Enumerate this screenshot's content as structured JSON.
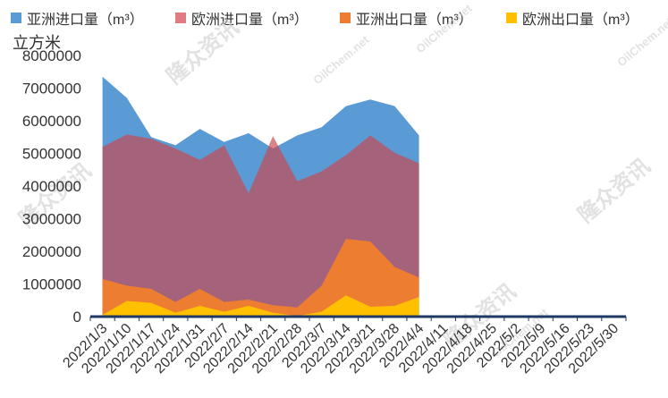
{
  "chart_data": {
    "type": "area",
    "ylabel": "立方米",
    "ylim": [
      0,
      8000000
    ],
    "yticks": [
      "0",
      "1000000",
      "2000000",
      "3000000",
      "4000000",
      "5000000",
      "6000000",
      "7000000",
      "8000000"
    ],
    "categories": [
      "2022/1/3",
      "2022/1/10",
      "2022/1/17",
      "2022/1/24",
      "2022/1/31",
      "2022/2/7",
      "2022/2/14",
      "2022/2/21",
      "2022/2/28",
      "2022/3/7",
      "2022/3/14",
      "2022/3/21",
      "2022/3/28",
      "2022/4/4",
      "2022/4/11",
      "2022/4/18",
      "2022/4/25",
      "2022/5/2",
      "2022/5/9",
      "2022/5/16",
      "2022/5/23",
      "2022/5/30"
    ],
    "legend_position": "top",
    "series": [
      {
        "name": "亚洲进口量（m³）",
        "color": "#5B9BD5",
        "values": [
          7350000,
          6700000,
          5500000,
          5250000,
          5750000,
          5350000,
          5620000,
          5150000,
          5550000,
          5800000,
          6450000,
          6650000,
          6450000,
          5550000,
          null,
          null,
          null,
          null,
          null,
          null,
          null,
          null
        ]
      },
      {
        "name": "欧洲进口量（m³）",
        "color": "#C9484F",
        "opacity": 0.68,
        "values": [
          5200000,
          5580000,
          5450000,
          5150000,
          4800000,
          5250000,
          3780000,
          5530000,
          4150000,
          4450000,
          4950000,
          5550000,
          5020000,
          4700000,
          null,
          null,
          null,
          null,
          null,
          null,
          null,
          null
        ]
      },
      {
        "name": "亚洲出口量（m³）",
        "color": "#ED7D31",
        "values": [
          1150000,
          950000,
          850000,
          450000,
          850000,
          450000,
          520000,
          350000,
          280000,
          950000,
          2380000,
          2300000,
          1520000,
          1200000,
          null,
          null,
          null,
          null,
          null,
          null,
          null,
          null
        ]
      },
      {
        "name": "欧洲出口量（m³）",
        "color": "#FFC000",
        "values": [
          50000,
          480000,
          420000,
          120000,
          330000,
          150000,
          330000,
          120000,
          20000,
          150000,
          650000,
          300000,
          330000,
          600000,
          null,
          null,
          null,
          null,
          null,
          null,
          null,
          null
        ]
      }
    ],
    "watermarks": [
      "隆众资讯",
      "OilChem.net"
    ]
  }
}
